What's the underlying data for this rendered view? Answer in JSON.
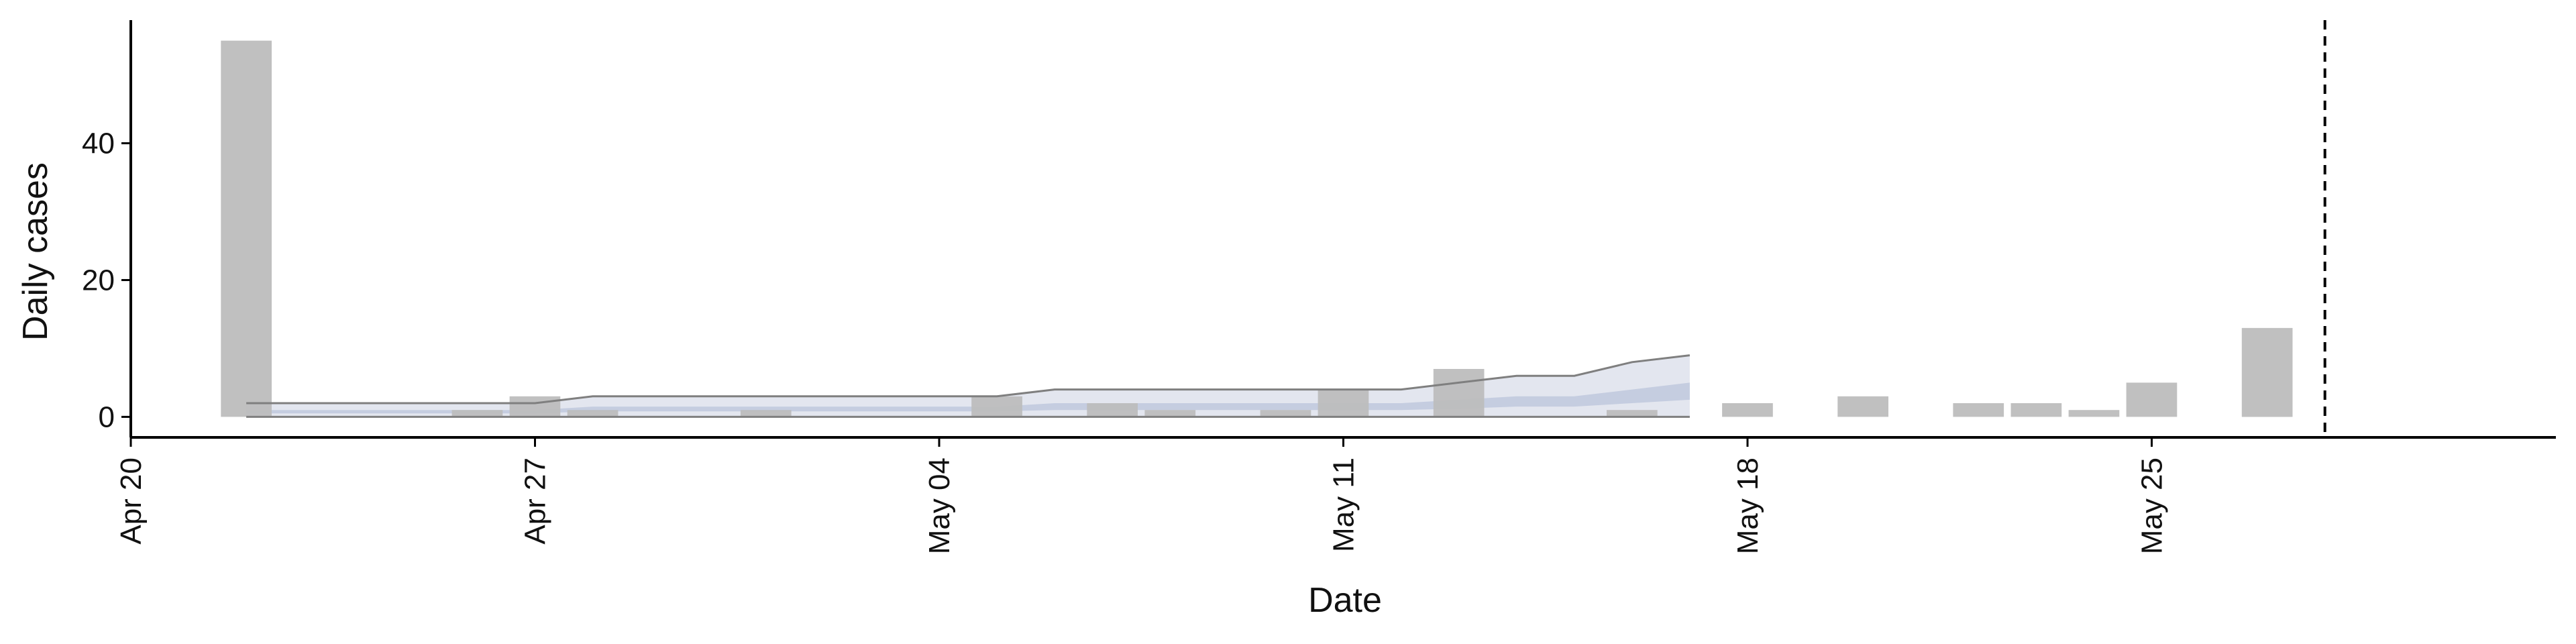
{
  "chart_data": {
    "type": "bar",
    "xlabel": "Date",
    "ylabel": "Daily cases",
    "x_range": [
      "2020-04-20",
      "2020-06-01"
    ],
    "ylim": [
      -3,
      58
    ],
    "y_ticks": [
      0,
      20,
      40
    ],
    "x_ticks": [
      {
        "date": "2020-04-20",
        "label": "Apr 20"
      },
      {
        "date": "2020-04-27",
        "label": "Apr 27"
      },
      {
        "date": "2020-05-04",
        "label": "May 04"
      },
      {
        "date": "2020-05-11",
        "label": "May 11"
      },
      {
        "date": "2020-05-18",
        "label": "May 18"
      },
      {
        "date": "2020-05-25",
        "label": "May 25"
      }
    ],
    "grid": false,
    "vline_date": "2020-05-28",
    "series": [
      {
        "values_by_date": [
          [
            "2020-04-22",
            55
          ],
          [
            "2020-04-26",
            1
          ],
          [
            "2020-04-27",
            3
          ],
          [
            "2020-04-28",
            1
          ],
          [
            "2020-05-01",
            1
          ],
          [
            "2020-05-05",
            3
          ],
          [
            "2020-05-07",
            2
          ],
          [
            "2020-05-08",
            1
          ],
          [
            "2020-05-10",
            1
          ],
          [
            "2020-05-11",
            4
          ],
          [
            "2020-05-13",
            7
          ],
          [
            "2020-05-16",
            1
          ],
          [
            "2020-05-18",
            2
          ],
          [
            "2020-05-20",
            3
          ],
          [
            "2020-05-22",
            2
          ],
          [
            "2020-05-23",
            2
          ],
          [
            "2020-05-24",
            1
          ],
          [
            "2020-05-25",
            5
          ],
          [
            "2020-05-27",
            13
          ]
        ],
        "color": "#bdbdbd"
      }
    ],
    "nowcast": {
      "dates": [
        "2020-04-22",
        "2020-04-23",
        "2020-04-24",
        "2020-04-25",
        "2020-04-26",
        "2020-04-27",
        "2020-04-28",
        "2020-04-29",
        "2020-04-30",
        "2020-05-01",
        "2020-05-02",
        "2020-05-03",
        "2020-05-04",
        "2020-05-05",
        "2020-05-06",
        "2020-05-07",
        "2020-05-08",
        "2020-05-09",
        "2020-05-10",
        "2020-05-11",
        "2020-05-12",
        "2020-05-13",
        "2020-05-14",
        "2020-05-15",
        "2020-05-16",
        "2020-05-17"
      ],
      "outer_lower": [
        0,
        0,
        0,
        0,
        0,
        0,
        0,
        0,
        0,
        0,
        0,
        0,
        0,
        0,
        0,
        0,
        0,
        0,
        0,
        0,
        0,
        0,
        0,
        0,
        0,
        0
      ],
      "outer_upper": [
        2,
        2,
        2,
        2,
        2,
        2,
        3,
        3,
        3,
        3,
        3,
        3,
        3,
        3,
        4,
        4,
        4,
        4,
        4,
        4,
        4,
        5,
        6,
        6,
        8,
        9
      ],
      "inner_lower": [
        0.5,
        0.5,
        0.5,
        0.5,
        0.5,
        0.5,
        0.8,
        0.8,
        0.8,
        0.8,
        0.8,
        0.8,
        0.8,
        0.8,
        1,
        1,
        1,
        1,
        1,
        1,
        1,
        1.2,
        1.5,
        1.5,
        2,
        2.5
      ],
      "inner_upper": [
        1,
        1,
        1,
        1,
        1,
        1,
        1.5,
        1.5,
        1.5,
        1.5,
        1.5,
        1.5,
        1.5,
        1.5,
        2,
        2,
        2,
        2,
        2,
        2,
        2,
        2.5,
        3,
        3,
        4,
        5
      ],
      "outer_color": "#e3e6ef",
      "inner_color": "#c5cde0",
      "line_color": "#7f7f7f"
    }
  }
}
